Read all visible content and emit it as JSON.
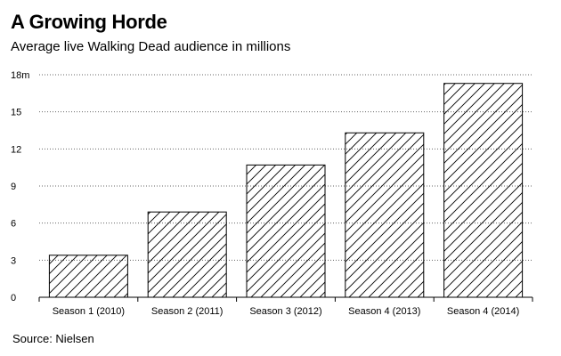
{
  "header": {
    "title": "A Growing Horde",
    "subtitle": "Average live Walking Dead audience in millions"
  },
  "footer": {
    "source": "Source: Nielsen"
  },
  "chart_data": {
    "type": "bar",
    "title": "A Growing Horde",
    "subtitle": "Average live Walking Dead audience in millions",
    "categories": [
      "Season 1 (2010)",
      "Season 2 (2011)",
      "Season 3 (2012)",
      "Season 4 (2013)",
      "Season 4 (2014)"
    ],
    "values": [
      3.4,
      6.9,
      10.7,
      13.3,
      17.3
    ],
    "xlabel": "",
    "ylabel": "",
    "ylim": [
      0,
      18
    ],
    "yticks": [
      0,
      3,
      6,
      9,
      12,
      15,
      18
    ],
    "ytick_labels": [
      "0",
      "3",
      "6",
      "9",
      "12",
      "15",
      "18m"
    ],
    "grid": true,
    "bar_fill": "diagonal-hatch",
    "colors": {
      "bar_stroke": "#000000",
      "hatch": "#000000",
      "grid": "#666666"
    }
  }
}
